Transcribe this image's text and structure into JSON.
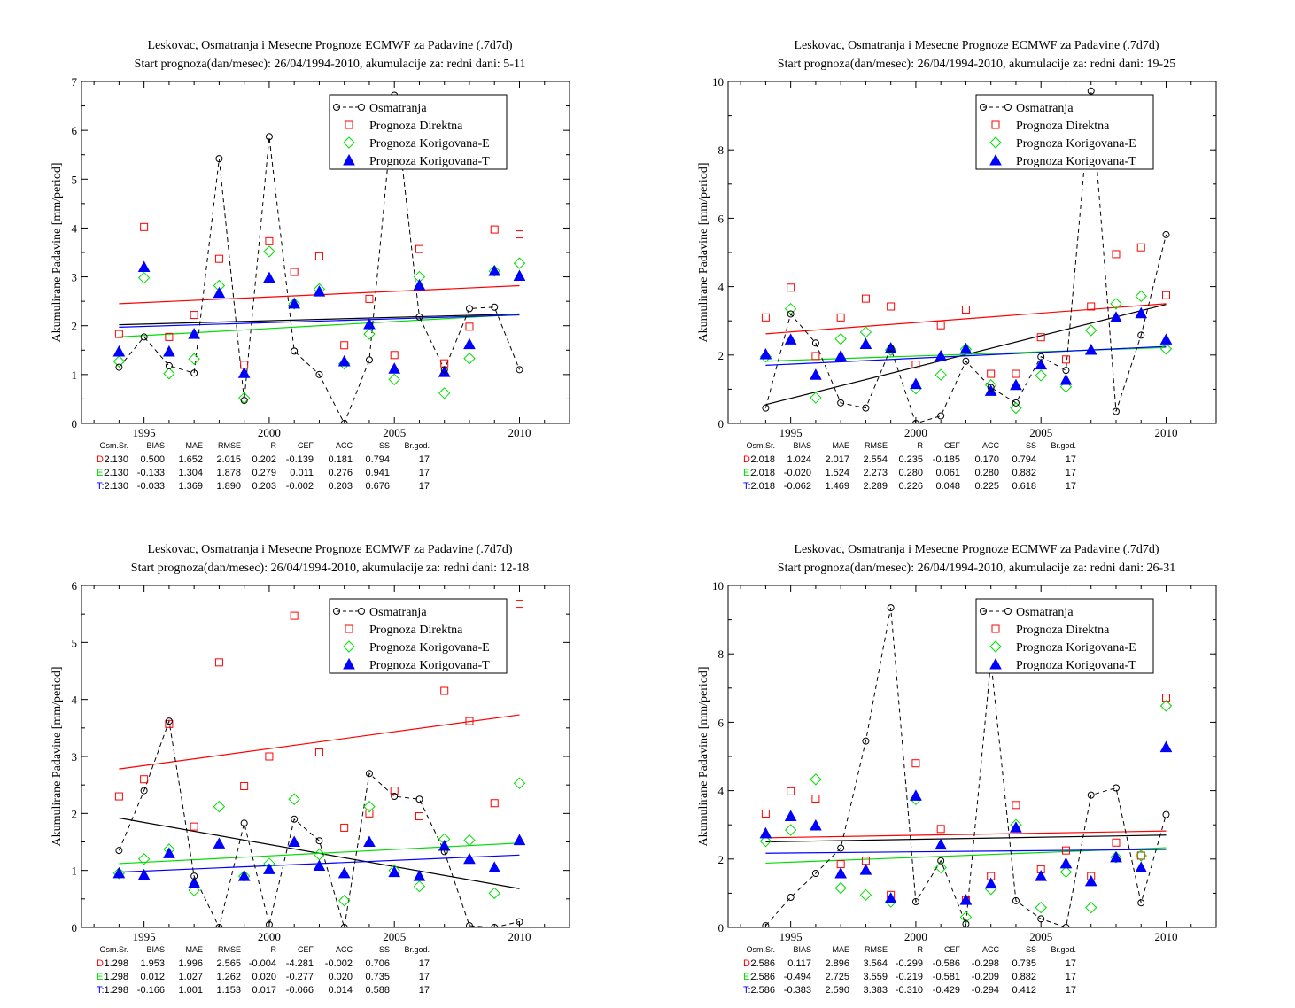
{
  "page": {
    "title_line1": "Leskovac, Osmatranja i Mesecne Prognoze ECMWF za Padavine (.7d7d)",
    "ylabel": "Akumulirane Padavine [mm/period]",
    "legend": [
      "Osmatranja",
      "Prognoza Direktna",
      "Prognoza Korigovana-E",
      "Prognoza Korigovana-T"
    ],
    "stat_headers": [
      "Osm.Sr.",
      "BIAS",
      "MAE",
      "RMSE",
      "R",
      "CEF",
      "ACC",
      "SS",
      "Br.god."
    ],
    "colors": {
      "obs": "#000000",
      "direct": "#ff0000",
      "corrE": "#00dd00",
      "corrT": "#0000ff"
    }
  },
  "chart_data": [
    {
      "type": "scatter",
      "title": "Leskovac, Osmatranja i Mesecne Prognoze ECMWF za Padavine (.7d7d)",
      "subtitle": "Start prognoza(dan/mesec): 26/04/1994-2010, akumulacije za: redni dani: 5-11",
      "ylabel": "Akumulirane Padavine [mm/period]",
      "xlim": [
        1992.5,
        2012
      ],
      "ylim": [
        0,
        7
      ],
      "xticks": [
        1995,
        2000,
        2005,
        2010
      ],
      "yticks": [
        0,
        1,
        2,
        3,
        4,
        5,
        6,
        7
      ],
      "x": [
        1994,
        1995,
        1996,
        1997,
        1998,
        1999,
        2000,
        2001,
        2002,
        2003,
        2004,
        2005,
        2006,
        2007,
        2008,
        2009,
        2010
      ],
      "series": [
        {
          "name": "Osmatranja",
          "values": [
            1.15,
            1.77,
            1.18,
            1.03,
            5.42,
            0.47,
            5.87,
            1.48,
            1.0,
            0.0,
            1.3,
            6.72,
            2.18,
            1.1,
            2.35,
            2.38,
            1.1
          ]
        },
        {
          "name": "Prognoza Direktna",
          "values": [
            1.83,
            4.02,
            1.77,
            2.22,
            3.37,
            1.2,
            3.73,
            3.1,
            3.42,
            1.6,
            2.55,
            1.4,
            3.57,
            1.23,
            1.98,
            3.97,
            3.87
          ]
        },
        {
          "name": "Prognoza Korigovana-E",
          "values": [
            1.27,
            2.98,
            1.02,
            1.32,
            2.82,
            0.52,
            3.52,
            2.45,
            2.75,
            1.22,
            1.83,
            0.9,
            3.0,
            0.62,
            1.33,
            3.12,
            3.28
          ]
        },
        {
          "name": "Prognoza Korigovana-T",
          "values": [
            1.47,
            3.2,
            1.47,
            1.83,
            2.67,
            1.03,
            2.98,
            2.45,
            2.7,
            1.27,
            2.03,
            1.12,
            2.83,
            1.05,
            1.62,
            3.12,
            3.02
          ]
        }
      ],
      "trends": [
        {
          "name": "Osmatranja",
          "start": 2.02,
          "end": 2.24
        },
        {
          "name": "Prognoza Direktna",
          "start": 2.45,
          "end": 2.82
        },
        {
          "name": "Prognoza Korigovana-E",
          "start": 1.77,
          "end": 2.23
        },
        {
          "name": "Prognoza Korigovana-T",
          "start": 1.97,
          "end": 2.22
        }
      ],
      "stats": [
        {
          "label": "D:",
          "values": [
            "2.130",
            "0.500",
            "1.652",
            "2.015",
            "0.202",
            "-0.139",
            "0.181",
            "0.794",
            "17"
          ]
        },
        {
          "label": "E:",
          "values": [
            "2.130",
            "-0.133",
            "1.304",
            "1.878",
            "0.279",
            "0.011",
            "0.276",
            "0.941",
            "17"
          ]
        },
        {
          "label": "T:",
          "values": [
            "2.130",
            "-0.033",
            "1.369",
            "1.890",
            "0.203",
            "-0.002",
            "0.203",
            "0.676",
            "17"
          ]
        }
      ]
    },
    {
      "type": "scatter",
      "title": "Leskovac, Osmatranja i Mesecne Prognoze ECMWF za Padavine (.7d7d)",
      "subtitle": "Start prognoza(dan/mesec): 26/04/1994-2010, akumulacije za: redni dani: 19-25",
      "ylabel": "Akumulirane Padavine [mm/period]",
      "xlim": [
        1992.5,
        2012
      ],
      "ylim": [
        0,
        10
      ],
      "xticks": [
        1995,
        2000,
        2005,
        2010
      ],
      "yticks": [
        0,
        2,
        4,
        6,
        8,
        10
      ],
      "x": [
        1994,
        1995,
        1996,
        1997,
        1998,
        1999,
        2000,
        2001,
        2002,
        2003,
        2004,
        2005,
        2006,
        2007,
        2008,
        2009,
        2010
      ],
      "series": [
        {
          "name": "Osmatranja",
          "values": [
            0.45,
            3.2,
            2.35,
            0.6,
            0.45,
            2.2,
            0.0,
            0.22,
            1.82,
            1.05,
            0.6,
            1.95,
            1.55,
            9.72,
            0.35,
            2.58,
            5.52
          ]
        },
        {
          "name": "Prognoza Direktna",
          "values": [
            3.1,
            3.97,
            1.97,
            3.1,
            3.65,
            3.42,
            1.72,
            2.87,
            3.33,
            1.45,
            1.45,
            2.52,
            1.87,
            3.42,
            4.95,
            5.15,
            3.75
          ]
        },
        {
          "name": "Prognoza Korigovana-E",
          "values": [
            1.95,
            3.35,
            0.75,
            2.47,
            2.67,
            2.15,
            1.02,
            1.42,
            2.17,
            1.12,
            0.45,
            1.4,
            1.07,
            2.72,
            3.5,
            3.72,
            2.18
          ]
        },
        {
          "name": "Prognoza Korigovana-T",
          "values": [
            2.02,
            2.45,
            1.42,
            1.97,
            2.32,
            2.2,
            1.15,
            1.97,
            2.18,
            0.95,
            1.12,
            1.72,
            1.27,
            2.15,
            3.1,
            3.22,
            2.45
          ]
        }
      ],
      "trends": [
        {
          "name": "Osmatranja",
          "start": 0.55,
          "end": 3.48
        },
        {
          "name": "Prognoza Direktna",
          "start": 2.62,
          "end": 3.5
        },
        {
          "name": "Prognoza Korigovana-E",
          "start": 1.82,
          "end": 2.22
        },
        {
          "name": "Prognoza Korigovana-T",
          "start": 1.7,
          "end": 2.25
        }
      ],
      "stats": [
        {
          "label": "D:",
          "values": [
            "2.018",
            "1.024",
            "2.017",
            "2.554",
            "0.235",
            "-0.185",
            "0.170",
            "0.794",
            "17"
          ]
        },
        {
          "label": "E:",
          "values": [
            "2.018",
            "-0.020",
            "1.524",
            "2.273",
            "0.280",
            "0.061",
            "0.280",
            "0.882",
            "17"
          ]
        },
        {
          "label": "T:",
          "values": [
            "2.018",
            "-0.062",
            "1.469",
            "2.289",
            "0.226",
            "0.048",
            "0.225",
            "0.618",
            "17"
          ]
        }
      ]
    },
    {
      "type": "scatter",
      "title": "Leskovac, Osmatranja i Mesecne Prognoze ECMWF za Padavine (.7d7d)",
      "subtitle": "Start prognoza(dan/mesec): 26/04/1994-2010, akumulacije za: redni dani: 12-18",
      "ylabel": "Akumulirane Padavine [mm/period]",
      "xlim": [
        1992.5,
        2012
      ],
      "ylim": [
        0,
        6
      ],
      "xticks": [
        1995,
        2000,
        2005,
        2010
      ],
      "yticks": [
        0,
        1,
        2,
        3,
        4,
        5,
        6
      ],
      "x": [
        1994,
        1995,
        1996,
        1997,
        1998,
        1999,
        2000,
        2001,
        2002,
        2003,
        2004,
        2005,
        2006,
        2007,
        2008,
        2009,
        2010
      ],
      "series": [
        {
          "name": "Osmatranja",
          "values": [
            1.35,
            2.4,
            3.62,
            0.9,
            0.0,
            1.83,
            0.05,
            1.9,
            1.52,
            0.0,
            2.7,
            2.3,
            2.25,
            1.33,
            0.03,
            0.0,
            0.1
          ]
        },
        {
          "name": "Prognoza Direktna",
          "values": [
            2.3,
            2.6,
            3.57,
            1.77,
            4.65,
            2.48,
            3.0,
            5.47,
            3.07,
            1.75,
            2.0,
            2.4,
            1.95,
            4.15,
            3.62,
            2.18,
            5.68
          ]
        },
        {
          "name": "Prognoza Korigovana-E",
          "values": [
            0.95,
            1.2,
            1.37,
            0.65,
            2.12,
            0.9,
            1.12,
            2.25,
            1.28,
            0.47,
            2.12,
            1.0,
            0.72,
            1.55,
            1.53,
            0.6,
            2.53
          ]
        },
        {
          "name": "Prognoza Korigovana-T",
          "values": [
            0.95,
            0.92,
            1.3,
            0.78,
            1.47,
            0.9,
            1.02,
            1.5,
            1.08,
            0.95,
            1.5,
            0.97,
            0.9,
            1.43,
            1.2,
            1.05,
            1.53
          ]
        }
      ],
      "trends": [
        {
          "name": "Osmatranja",
          "start": 1.92,
          "end": 0.68
        },
        {
          "name": "Prognoza Direktna",
          "start": 2.78,
          "end": 3.73
        },
        {
          "name": "Prognoza Korigovana-E",
          "start": 1.12,
          "end": 1.48
        },
        {
          "name": "Prognoza Korigovana-T",
          "start": 0.97,
          "end": 1.27
        }
      ],
      "stats": [
        {
          "label": "D:",
          "values": [
            "1.298",
            "1.953",
            "1.996",
            "2.565",
            "-0.004",
            "-4.281",
            "-0.002",
            "0.706",
            "17"
          ]
        },
        {
          "label": "E:",
          "values": [
            "1.298",
            "0.012",
            "1.027",
            "1.262",
            "0.020",
            "-0.277",
            "0.020",
            "0.735",
            "17"
          ]
        },
        {
          "label": "T:",
          "values": [
            "1.298",
            "-0.166",
            "1.001",
            "1.153",
            "0.017",
            "-0.066",
            "0.014",
            "0.588",
            "17"
          ]
        }
      ]
    },
    {
      "type": "scatter",
      "title": "Leskovac, Osmatranja i Mesecne Prognoze ECMWF za Padavine (.7d7d)",
      "subtitle": "Start prognoza(dan/mesec): 26/04/1994-2010, akumulacije za: redni dani: 26-31",
      "ylabel": "Akumulirane Padavine [mm/period]",
      "xlim": [
        1992.5,
        2012
      ],
      "ylim": [
        0,
        10
      ],
      "xticks": [
        1995,
        2000,
        2005,
        2010
      ],
      "yticks": [
        0,
        2,
        4,
        6,
        8,
        10
      ],
      "x": [
        1994,
        1995,
        1996,
        1997,
        1998,
        1999,
        2000,
        2001,
        2002,
        2003,
        2004,
        2005,
        2006,
        2007,
        2008,
        2009,
        2010
      ],
      "series": [
        {
          "name": "Osmatranja",
          "values": [
            0.05,
            0.88,
            1.58,
            2.32,
            5.45,
            9.35,
            0.75,
            1.95,
            0.1,
            7.8,
            0.78,
            0.25,
            0.0,
            3.87,
            4.08,
            0.72,
            3.3
          ]
        },
        {
          "name": "Prognoza Direktna",
          "values": [
            3.33,
            3.98,
            3.77,
            1.85,
            1.95,
            0.95,
            4.8,
            2.88,
            0.8,
            1.5,
            3.58,
            1.7,
            2.25,
            1.5,
            2.48,
            2.1,
            6.72
          ]
        },
        {
          "name": "Prognoza Korigovana-E",
          "values": [
            2.52,
            2.85,
            4.33,
            1.15,
            0.95,
            0.75,
            3.75,
            1.75,
            0.3,
            1.12,
            3.0,
            0.58,
            1.62,
            0.58,
            2.05,
            2.1,
            6.48
          ]
        },
        {
          "name": "Prognoza Korigovana-T",
          "values": [
            2.75,
            3.25,
            2.98,
            1.58,
            1.68,
            0.85,
            3.85,
            2.42,
            0.8,
            1.28,
            2.92,
            1.5,
            1.87,
            1.35,
            2.05,
            1.75,
            5.27
          ]
        }
      ],
      "trends": [
        {
          "name": "Osmatranja",
          "start": 2.5,
          "end": 2.7
        },
        {
          "name": "Prognoza Direktna",
          "start": 2.62,
          "end": 2.82
        },
        {
          "name": "Prognoza Korigovana-E",
          "start": 1.88,
          "end": 2.33
        },
        {
          "name": "Prognoza Korigovana-T",
          "start": 2.17,
          "end": 2.28
        }
      ],
      "stats": [
        {
          "label": "D:",
          "values": [
            "2.586",
            "0.117",
            "2.896",
            "3.564",
            "-0.299",
            "-0.586",
            "-0.298",
            "0.735",
            "17"
          ]
        },
        {
          "label": "E:",
          "values": [
            "2.586",
            "-0.494",
            "2.725",
            "3.559",
            "-0.219",
            "-0.581",
            "-0.209",
            "0.882",
            "17"
          ]
        },
        {
          "label": "T:",
          "values": [
            "2.586",
            "-0.383",
            "2.590",
            "3.383",
            "-0.310",
            "-0.429",
            "-0.294",
            "0.412",
            "17"
          ]
        }
      ]
    }
  ]
}
